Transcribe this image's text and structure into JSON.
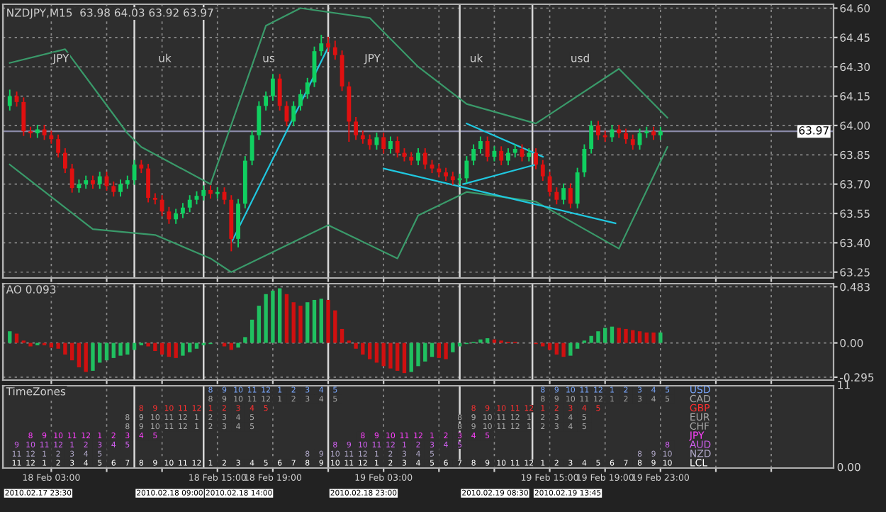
{
  "chart_data": [
    {
      "type": "candlestick",
      "title": "NZDJPY,M15  63.98 64.03 63.92 63.97",
      "xlim": [
        "2010-02-17T23:30",
        "2010-02-20T11:30"
      ],
      "xticks": [
        {
          "value": "2010-02-18T03:00",
          "label": null
        },
        {
          "value": "2010-02-18T07:00",
          "label": null
        },
        {
          "value": "2010-02-18T11:00",
          "label": null
        },
        {
          "value": "2010-02-18T15:00",
          "label": null
        },
        {
          "value": "2010-02-18T19:00",
          "label": null
        },
        {
          "value": "2010-02-18T23:00",
          "label": null
        },
        {
          "value": "2010-02-19T03:00",
          "label": null
        },
        {
          "value": "2010-02-19T07:00",
          "label": null
        },
        {
          "value": "2010-02-19T11:00",
          "label": null
        },
        {
          "value": "2010-02-19T15:00",
          "label": null
        },
        {
          "value": "2010-02-19T19:00",
          "label": null
        },
        {
          "value": "2010-02-19T23:00",
          "label": null
        },
        {
          "value": "2010-02-20T03:00",
          "label": null
        },
        {
          "value": "2010-02-20T07:00",
          "label": null
        }
      ],
      "ylim": [
        63.22,
        64.62
      ],
      "yticks": [
        {
          "value": 63.25,
          "label": "63.25"
        },
        {
          "value": 63.4,
          "label": "63.40"
        },
        {
          "value": 63.55,
          "label": "63.55"
        },
        {
          "value": 63.7,
          "label": "63.70"
        },
        {
          "value": 63.85,
          "label": "63.85"
        },
        {
          "value": 64.0,
          "label": "64.00"
        },
        {
          "value": 64.15,
          "label": "64.15"
        },
        {
          "value": 64.3,
          "label": "64.30"
        },
        {
          "value": 64.45,
          "label": "64.45"
        },
        {
          "value": 64.6,
          "label": "64.60"
        }
      ],
      "grid": true,
      "tick_labels": "y",
      "ref_lines": [
        {
          "axis": "y",
          "value": 63.97,
          "label": "63.97",
          "color": "#8a8aa8"
        },
        {
          "axis": "x",
          "value": "2010-02-17T23:30",
          "color": "#d8d8d8"
        },
        {
          "axis": "x",
          "value": "2010-02-18T09:00",
          "color": "#d8d8d8"
        },
        {
          "axis": "x",
          "value": "2010-02-18T14:00",
          "color": "#d8d8d8"
        },
        {
          "axis": "x",
          "value": "2010-02-18T23:00",
          "color": "#d8d8d8"
        },
        {
          "axis": "x",
          "value": "2010-02-19T08:30",
          "color": "#d8d8d8"
        },
        {
          "axis": "x",
          "value": "2010-02-19T13:45",
          "color": "#d8d8d8"
        }
      ],
      "annotations": [
        "JPY",
        "uk",
        "us",
        "JPY",
        "uk",
        "usd"
      ],
      "series": [
        {
          "type": "line",
          "color": "#3a9a6a",
          "x": [
            "2010-02-18T00:00",
            "2010-02-18T04:00",
            "2010-02-18T08:30",
            "2010-02-18T09:30",
            "2010-02-18T14:30",
            "2010-02-18T18:30",
            "2010-02-18T21:00",
            "2010-02-19T02:00",
            "2010-02-19T05:30",
            "2010-02-19T09:00",
            "2010-02-19T14:00",
            "2010-02-19T20:00",
            "2010-02-19T23:30"
          ],
          "values": [
            64.32,
            64.39,
            63.96,
            63.89,
            63.7,
            64.51,
            64.6,
            64.55,
            64.3,
            64.11,
            64.01,
            64.29,
            64.04
          ]
        },
        {
          "type": "line",
          "color": "#3a9a6a",
          "x": [
            "2010-02-18T00:00",
            "2010-02-18T06:00",
            "2010-02-18T10:30",
            "2010-02-18T14:30",
            "2010-02-18T16:00",
            "2010-02-18T23:00",
            "2010-02-19T04:00",
            "2010-02-19T05:30",
            "2010-02-19T09:00",
            "2010-02-19T14:00",
            "2010-02-19T20:00",
            "2010-02-19T23:30"
          ],
          "values": [
            63.8,
            63.47,
            63.44,
            63.32,
            63.25,
            63.49,
            63.32,
            63.54,
            63.66,
            63.61,
            63.37,
            63.89
          ]
        },
        {
          "type": "line",
          "color": "#20c8e0",
          "x": [
            "2010-02-18T16:00",
            "2010-02-18T23:00"
          ],
          "values": [
            63.4,
            64.4
          ]
        },
        {
          "type": "line",
          "color": "#20c8e0",
          "x": [
            "2010-02-19T03:00",
            "2010-02-19T19:45"
          ],
          "values": [
            63.78,
            63.5
          ]
        },
        {
          "type": "line",
          "color": "#20c8e0",
          "x": [
            "2010-02-19T09:00",
            "2010-02-19T14:30"
          ],
          "values": [
            64.01,
            63.84
          ]
        },
        {
          "type": "line",
          "color": "#20c8e0",
          "x": [
            "2010-02-19T08:45",
            "2010-02-19T14:00"
          ],
          "values": [
            63.7,
            63.8
          ]
        },
        {
          "color": "#10d060",
          "x": [
            "2010-02-18T00:00",
            "2010-02-18T02:00",
            "2010-02-18T05:00",
            "2010-02-18T05:30",
            "2010-02-18T06:30",
            "2010-02-18T08:00",
            "2010-02-18T08:30",
            "2010-02-18T09:00",
            "2010-02-18T12:00",
            "2010-02-18T12:30",
            "2010-02-18T13:00",
            "2010-02-18T13:30",
            "2010-02-18T14:00",
            "2010-02-18T15:00",
            "2010-02-18T16:30",
            "2010-02-18T17:00",
            "2010-02-18T17:30",
            "2010-02-18T18:00",
            "2010-02-18T18:30",
            "2010-02-18T19:00",
            "2010-02-18T20:30",
            "2010-02-18T21:00",
            "2010-02-18T21:30",
            "2010-02-18T22:00",
            "2010-02-18T22:30",
            "2010-02-19T02:30",
            "2010-02-19T03:30",
            "2010-02-19T05:30",
            "2010-02-19T08:30",
            "2010-02-19T09:00",
            "2010-02-19T09:30",
            "2010-02-19T10:00",
            "2010-02-19T11:00",
            "2010-02-19T12:00",
            "2010-02-19T12:30",
            "2010-02-19T13:30",
            "2010-02-19T16:00",
            "2010-02-19T17:00",
            "2010-02-19T17:30",
            "2010-02-19T18:00",
            "2010-02-19T19:30",
            "2010-02-19T21:30",
            "2010-02-19T22:00",
            "2010-02-19T23:00"
          ],
          "ohlc": [
            [
              64.1,
              64.18,
              64.08,
              64.15
            ],
            [
              63.96,
              64.0,
              63.94,
              63.98
            ],
            [
              63.68,
              63.72,
              63.66,
              63.7
            ],
            [
              63.7,
              63.74,
              63.68,
              63.72
            ],
            [
              63.7,
              63.76,
              63.68,
              63.74
            ],
            [
              63.66,
              63.72,
              63.64,
              63.7
            ],
            [
              63.7,
              63.74,
              63.68,
              63.72
            ],
            [
              63.72,
              63.82,
              63.7,
              63.8
            ],
            [
              63.52,
              63.57,
              63.5,
              63.55
            ],
            [
              63.55,
              63.6,
              63.53,
              63.58
            ],
            [
              63.58,
              63.64,
              63.56,
              63.62
            ],
            [
              63.62,
              63.66,
              63.6,
              63.64
            ],
            [
              63.64,
              63.69,
              63.62,
              63.67
            ],
            [
              63.65,
              63.68,
              63.63,
              63.66
            ],
            [
              63.42,
              63.62,
              63.38,
              63.6
            ],
            [
              63.6,
              63.84,
              63.58,
              63.82
            ],
            [
              63.82,
              63.97,
              63.8,
              63.95
            ],
            [
              63.95,
              64.12,
              63.93,
              64.1
            ],
            [
              64.1,
              64.17,
              64.08,
              64.15
            ],
            [
              64.15,
              64.26,
              64.13,
              64.24
            ],
            [
              64.02,
              64.12,
              64.0,
              64.1
            ],
            [
              64.1,
              64.18,
              64.08,
              64.16
            ],
            [
              64.16,
              64.24,
              64.14,
              64.22
            ],
            [
              64.22,
              64.4,
              64.2,
              64.38
            ],
            [
              64.38,
              64.46,
              64.36,
              64.42
            ],
            [
              63.9,
              63.96,
              63.88,
              63.94
            ],
            [
              63.88,
              63.94,
              63.86,
              63.92
            ],
            [
              63.82,
              63.88,
              63.8,
              63.86
            ],
            [
              63.72,
              63.75,
              63.7,
              63.73
            ],
            [
              63.73,
              63.84,
              63.71,
              63.82
            ],
            [
              63.82,
              63.9,
              63.8,
              63.88
            ],
            [
              63.88,
              63.94,
              63.86,
              63.92
            ],
            [
              63.84,
              63.89,
              63.82,
              63.87
            ],
            [
              63.82,
              63.88,
              63.8,
              63.86
            ],
            [
              63.86,
              63.9,
              63.84,
              63.88
            ],
            [
              63.84,
              63.88,
              63.82,
              63.86
            ],
            [
              63.62,
              63.7,
              63.6,
              63.68
            ],
            [
              63.6,
              63.78,
              63.58,
              63.76
            ],
            [
              63.76,
              63.9,
              63.74,
              63.88
            ],
            [
              63.88,
              64.02,
              63.86,
              64.0
            ],
            [
              63.94,
              64.0,
              63.92,
              63.98
            ],
            [
              63.9,
              63.98,
              63.88,
              63.96
            ],
            [
              63.96,
              63.99,
              63.94,
              63.97
            ],
            [
              63.95,
              63.99,
              63.93,
              63.97
            ]
          ]
        },
        {
          "color": "#e01010",
          "x": [
            "2010-02-18T00:30",
            "2010-02-18T01:00",
            "2010-02-18T01:30",
            "2010-02-18T02:30",
            "2010-02-18T03:00",
            "2010-02-18T03:30",
            "2010-02-18T04:00",
            "2010-02-18T04:30",
            "2010-02-18T06:00",
            "2010-02-18T07:00",
            "2010-02-18T07:30",
            "2010-02-18T09:30",
            "2010-02-18T10:00",
            "2010-02-18T10:30",
            "2010-02-18T11:00",
            "2010-02-18T11:30",
            "2010-02-18T14:30",
            "2010-02-18T15:30",
            "2010-02-18T16:00",
            "2010-02-18T19:30",
            "2010-02-18T20:00",
            "2010-02-18T23:00",
            "2010-02-18T23:30",
            "2010-02-19T00:00",
            "2010-02-19T00:30",
            "2010-02-19T01:00",
            "2010-02-19T01:30",
            "2010-02-19T02:00",
            "2010-02-19T03:00",
            "2010-02-19T04:00",
            "2010-02-19T04:30",
            "2010-02-19T05:00",
            "2010-02-19T06:00",
            "2010-02-19T06:30",
            "2010-02-19T07:00",
            "2010-02-19T07:30",
            "2010-02-19T08:00",
            "2010-02-19T10:30",
            "2010-02-19T11:30",
            "2010-02-19T13:00",
            "2010-02-19T14:00",
            "2010-02-19T14:30",
            "2010-02-19T15:00",
            "2010-02-19T15:30",
            "2010-02-19T16:30",
            "2010-02-19T18:30",
            "2010-02-19T19:00",
            "2010-02-19T20:00",
            "2010-02-19T20:30",
            "2010-02-19T21:00",
            "2010-02-19T22:30"
          ],
          "ohlc": [
            [
              64.15,
              64.17,
              64.1,
              64.12
            ],
            [
              64.12,
              64.14,
              63.95,
              63.97
            ],
            [
              63.97,
              63.99,
              63.94,
              63.96
            ],
            [
              63.98,
              64.0,
              63.93,
              63.95
            ],
            [
              63.95,
              63.97,
              63.91,
              63.93
            ],
            [
              63.93,
              63.95,
              63.84,
              63.86
            ],
            [
              63.86,
              63.88,
              63.76,
              63.78
            ],
            [
              63.78,
              63.8,
              63.66,
              63.68
            ],
            [
              63.72,
              63.74,
              63.68,
              63.7
            ],
            [
              63.74,
              63.76,
              63.67,
              63.69
            ],
            [
              63.69,
              63.71,
              63.64,
              63.66
            ],
            [
              63.8,
              63.82,
              63.76,
              63.78
            ],
            [
              63.78,
              63.8,
              63.61,
              63.63
            ],
            [
              63.63,
              63.65,
              63.6,
              63.62
            ],
            [
              63.62,
              63.64,
              63.54,
              63.56
            ],
            [
              63.56,
              63.58,
              63.5,
              63.52
            ],
            [
              63.67,
              63.69,
              63.63,
              63.65
            ],
            [
              63.66,
              63.68,
              63.6,
              63.62
            ],
            [
              63.62,
              63.64,
              63.36,
              63.42
            ],
            [
              64.24,
              64.26,
              64.08,
              64.1
            ],
            [
              64.1,
              64.12,
              64.0,
              64.02
            ],
            [
              64.42,
              64.45,
              64.38,
              64.4
            ],
            [
              64.4,
              64.43,
              64.34,
              64.36
            ],
            [
              64.36,
              64.38,
              64.18,
              64.2
            ],
            [
              64.2,
              64.22,
              63.92,
              64.02
            ],
            [
              64.02,
              64.04,
              63.93,
              63.95
            ],
            [
              63.95,
              63.97,
              63.91,
              63.93
            ],
            [
              63.93,
              63.95,
              63.88,
              63.9
            ],
            [
              63.94,
              63.96,
              63.86,
              63.88
            ],
            [
              63.92,
              63.94,
              63.84,
              63.86
            ],
            [
              63.86,
              63.88,
              63.82,
              63.84
            ],
            [
              63.84,
              63.86,
              63.8,
              63.82
            ],
            [
              63.86,
              63.88,
              63.78,
              63.8
            ],
            [
              63.8,
              63.82,
              63.76,
              63.78
            ],
            [
              63.78,
              63.8,
              63.74,
              63.76
            ],
            [
              63.76,
              63.78,
              63.72,
              63.74
            ],
            [
              63.74,
              63.76,
              63.7,
              63.72
            ],
            [
              63.92,
              63.94,
              63.82,
              63.84
            ],
            [
              63.87,
              63.89,
              63.8,
              63.82
            ],
            [
              63.88,
              63.9,
              63.82,
              63.84
            ],
            [
              63.86,
              63.88,
              63.78,
              63.8
            ],
            [
              63.8,
              63.82,
              63.72,
              63.74
            ],
            [
              63.74,
              63.76,
              63.64,
              63.66
            ],
            [
              63.66,
              63.68,
              63.6,
              63.62
            ],
            [
              63.68,
              63.7,
              63.58,
              63.6
            ],
            [
              64.0,
              64.02,
              63.93,
              63.95
            ],
            [
              63.95,
              63.97,
              63.92,
              63.94
            ],
            [
              63.98,
              64.0,
              63.94,
              63.96
            ],
            [
              63.96,
              63.98,
              63.91,
              63.93
            ],
            [
              63.93,
              63.95,
              63.88,
              63.9
            ],
            [
              63.97,
              63.99,
              63.93,
              63.95
            ]
          ]
        }
      ]
    },
    {
      "type": "bar",
      "title": "AO 0.093",
      "xlim": [
        "2010-02-17T23:30",
        "2010-02-20T11:30"
      ],
      "xticks": [
        {
          "value": "2010-02-18T03:00",
          "label": null
        },
        {
          "value": "2010-02-18T07:00",
          "label": null
        },
        {
          "value": "2010-02-18T11:00",
          "label": null
        },
        {
          "value": "2010-02-18T15:00",
          "label": null
        },
        {
          "value": "2010-02-18T19:00",
          "label": null
        },
        {
          "value": "2010-02-18T23:00",
          "label": null
        },
        {
          "value": "2010-02-19T03:00",
          "label": null
        },
        {
          "value": "2010-02-19T07:00",
          "label": null
        },
        {
          "value": "2010-02-19T11:00",
          "label": null
        },
        {
          "value": "2010-02-19T15:00",
          "label": null
        },
        {
          "value": "2010-02-19T19:00",
          "label": null
        },
        {
          "value": "2010-02-19T23:00",
          "label": null
        },
        {
          "value": "2010-02-20T03:00",
          "label": null
        },
        {
          "value": "2010-02-20T07:00",
          "label": null
        }
      ],
      "ylim": [
        -0.32,
        0.51
      ],
      "yticks": [
        {
          "value": -0.295,
          "label": "-0.295"
        },
        {
          "value": 0,
          "label": "0.00"
        },
        0.483
      ],
      "grid": true,
      "tick_labels": "y",
      "ref_lines": [
        {
          "axis": "x",
          "value": "2010-02-17T23:30",
          "color": "#d8d8d8"
        },
        {
          "axis": "x",
          "value": "2010-02-18T09:00",
          "color": "#d8d8d8"
        },
        {
          "axis": "x",
          "value": "2010-02-18T14:00",
          "color": "#d8d8d8"
        },
        {
          "axis": "x",
          "value": "2010-02-18T23:00",
          "color": "#d8d8d8"
        },
        {
          "axis": "x",
          "value": "2010-02-19T08:30",
          "color": "#d8d8d8"
        },
        {
          "axis": "x",
          "value": "2010-02-19T13:45",
          "color": "#d8d8d8"
        }
      ],
      "x": [
        "2010-02-18T00:00",
        "2010-02-18T00:30",
        "2010-02-18T01:00",
        "2010-02-18T01:30",
        "2010-02-18T02:00",
        "2010-02-18T02:30",
        "2010-02-18T03:00",
        "2010-02-18T03:30",
        "2010-02-18T04:00",
        "2010-02-18T04:30",
        "2010-02-18T05:00",
        "2010-02-18T05:30",
        "2010-02-18T06:00",
        "2010-02-18T06:30",
        "2010-02-18T07:00",
        "2010-02-18T07:30",
        "2010-02-18T08:00",
        "2010-02-18T08:30",
        "2010-02-18T09:00",
        "2010-02-18T09:30",
        "2010-02-18T10:00",
        "2010-02-18T10:30",
        "2010-02-18T11:00",
        "2010-02-18T11:30",
        "2010-02-18T12:00",
        "2010-02-18T12:30",
        "2010-02-18T13:00",
        "2010-02-18T13:30",
        "2010-02-18T14:00",
        "2010-02-18T14:30",
        "2010-02-18T15:00",
        "2010-02-18T15:30",
        "2010-02-18T16:00",
        "2010-02-18T16:30",
        "2010-02-18T17:00",
        "2010-02-18T17:30",
        "2010-02-18T18:00",
        "2010-02-18T18:30",
        "2010-02-18T19:00",
        "2010-02-18T19:30",
        "2010-02-18T20:00",
        "2010-02-18T20:30",
        "2010-02-18T21:00",
        "2010-02-18T21:30",
        "2010-02-18T22:00",
        "2010-02-18T22:30",
        "2010-02-18T23:00",
        "2010-02-18T23:30",
        "2010-02-19T00:00",
        "2010-02-19T00:30",
        "2010-02-19T01:00",
        "2010-02-19T01:30",
        "2010-02-19T02:00",
        "2010-02-19T02:30",
        "2010-02-19T03:00",
        "2010-02-19T03:30",
        "2010-02-19T04:00",
        "2010-02-19T04:30",
        "2010-02-19T05:00",
        "2010-02-19T05:30",
        "2010-02-19T06:00",
        "2010-02-19T06:30",
        "2010-02-19T07:00",
        "2010-02-19T07:30",
        "2010-02-19T08:00",
        "2010-02-19T08:30",
        "2010-02-19T09:00",
        "2010-02-19T09:30",
        "2010-02-19T10:00",
        "2010-02-19T10:30",
        "2010-02-19T11:00",
        "2010-02-19T11:30",
        "2010-02-19T12:00",
        "2010-02-19T12:30",
        "2010-02-19T13:00",
        "2010-02-19T13:30",
        "2010-02-19T14:00",
        "2010-02-19T14:30",
        "2010-02-19T15:00",
        "2010-02-19T15:30",
        "2010-02-19T16:00",
        "2010-02-19T16:30",
        "2010-02-19T17:00",
        "2010-02-19T17:30",
        "2010-02-19T18:00",
        "2010-02-19T18:30",
        "2010-02-19T19:00",
        "2010-02-19T19:30",
        "2010-02-19T20:00",
        "2010-02-19T20:30",
        "2010-02-19T21:00",
        "2010-02-19T21:30",
        "2010-02-19T22:00",
        "2010-02-19T22:30",
        "2010-02-19T23:00"
      ],
      "values": [
        0.1,
        0.08,
        0.02,
        -0.03,
        -0.02,
        -0.02,
        -0.04,
        -0.05,
        -0.1,
        -0.15,
        -0.21,
        -0.25,
        -0.24,
        -0.17,
        -0.15,
        -0.13,
        -0.11,
        -0.1,
        -0.06,
        -0.02,
        -0.03,
        -0.07,
        -0.1,
        -0.12,
        -0.13,
        -0.11,
        -0.08,
        -0.05,
        -0.02,
        -0.01,
        0.0,
        -0.03,
        -0.06,
        -0.04,
        0.05,
        0.2,
        0.32,
        0.42,
        0.45,
        0.47,
        0.42,
        0.35,
        0.32,
        0.35,
        0.37,
        0.38,
        0.37,
        0.28,
        0.12,
        0.02,
        -0.05,
        -0.1,
        -0.14,
        -0.17,
        -0.2,
        -0.22,
        -0.24,
        -0.26,
        -0.25,
        -0.2,
        -0.16,
        -0.12,
        -0.13,
        -0.14,
        -0.08,
        -0.03,
        -0.01,
        0.01,
        0.03,
        0.04,
        0.03,
        0.02,
        0.01,
        0.01,
        0.0,
        0.0,
        -0.01,
        -0.03,
        -0.06,
        -0.1,
        -0.12,
        -0.11,
        -0.05,
        0.02,
        0.06,
        0.1,
        0.13,
        0.14,
        0.13,
        0.12,
        0.11,
        0.1,
        0.09,
        0.09,
        0.09
      ],
      "colors": [
        "#20c060",
        "#d01010",
        "#d01010",
        "#d01010",
        "#20c060",
        "#d01010",
        "#d01010",
        "#d01010",
        "#d01010",
        "#d01010",
        "#d01010",
        "#d01010",
        "#20c060",
        "#20c060",
        "#20c060",
        "#20c060",
        "#20c060",
        "#20c060",
        "#20c060",
        "#20c060",
        "#d01010",
        "#d01010",
        "#d01010",
        "#d01010",
        "#d01010",
        "#20c060",
        "#20c060",
        "#20c060",
        "#20c060",
        "#20c060",
        "#20c060",
        "#d01010",
        "#d01010",
        "#20c060",
        "#20c060",
        "#20c060",
        "#20c060",
        "#20c060",
        "#20c060",
        "#20c060",
        "#d01010",
        "#d01010",
        "#d01010",
        "#20c060",
        "#20c060",
        "#20c060",
        "#d01010",
        "#d01010",
        "#d01010",
        "#d01010",
        "#d01010",
        "#d01010",
        "#d01010",
        "#d01010",
        "#d01010",
        "#d01010",
        "#d01010",
        "#d01010",
        "#20c060",
        "#20c060",
        "#20c060",
        "#20c060",
        "#d01010",
        "#d01010",
        "#20c060",
        "#20c060",
        "#20c060",
        "#20c060",
        "#20c060",
        "#20c060",
        "#d01010",
        "#d01010",
        "#d01010",
        "#d01010",
        "#d01010",
        "#d01010",
        "#d01010",
        "#d01010",
        "#d01010",
        "#d01010",
        "#d01010",
        "#20c060",
        "#20c060",
        "#20c060",
        "#20c060",
        "#20c060",
        "#20c060",
        "#20c060",
        "#d01010",
        "#d01010",
        "#d01010",
        "#d01010",
        "#d01010",
        "#d01010",
        "#20c060"
      ]
    },
    {
      "type": "heatmap",
      "title": "TimeZones",
      "data_labels": true,
      "y_categories": [
        null,
        null,
        null,
        null,
        null,
        null,
        null,
        null,
        null
      ],
      "y2_categories": [
        "USD",
        "CAD",
        "GBP",
        "EUR",
        "CHF",
        "JPY",
        "AUD",
        "NZD",
        "LCL"
      ],
      "colors": [
        "#7aa8ff",
        "#a8a8a8",
        "#ff3030",
        "#a8a8a8",
        "#a8a8a8",
        "#ff40ff",
        "#d060f0",
        "#b0a8c8",
        "#ffffff"
      ],
      "cells": [
        [
          null,
          null,
          null,
          null,
          null,
          null,
          null,
          null,
          null,
          null,
          null,
          null,
          null,
          null,
          8,
          9,
          10,
          11,
          12,
          1,
          2,
          3,
          4,
          5,
          null,
          null,
          null,
          null,
          null,
          null,
          null,
          null,
          null,
          null,
          null,
          null,
          null,
          null,
          8,
          9,
          10,
          11,
          12,
          1,
          2,
          3,
          4,
          5
        ],
        [
          null,
          null,
          null,
          null,
          null,
          null,
          null,
          null,
          null,
          null,
          null,
          null,
          null,
          null,
          8,
          9,
          10,
          11,
          12,
          1,
          2,
          3,
          4,
          5,
          null,
          null,
          null,
          null,
          null,
          null,
          null,
          null,
          null,
          null,
          null,
          null,
          null,
          null,
          8,
          9,
          10,
          11,
          12,
          1,
          2,
          3,
          4,
          5
        ],
        [
          null,
          null,
          null,
          null,
          null,
          null,
          null,
          null,
          null,
          8,
          9,
          10,
          11,
          12,
          1,
          2,
          3,
          4,
          5,
          null,
          null,
          null,
          null,
          null,
          null,
          null,
          null,
          null,
          null,
          null,
          null,
          null,
          null,
          8,
          9,
          10,
          11,
          12,
          1,
          2,
          3,
          4,
          5,
          null,
          null,
          null,
          null,
          null
        ],
        [
          null,
          null,
          null,
          null,
          null,
          null,
          null,
          null,
          8,
          9,
          10,
          11,
          12,
          1,
          2,
          3,
          4,
          5,
          null,
          null,
          null,
          null,
          null,
          null,
          null,
          null,
          null,
          null,
          null,
          null,
          null,
          null,
          8,
          9,
          10,
          11,
          12,
          1,
          2,
          3,
          4,
          5,
          null,
          null,
          null,
          null,
          null,
          null
        ],
        [
          null,
          null,
          null,
          null,
          null,
          null,
          null,
          null,
          8,
          9,
          10,
          11,
          12,
          1,
          2,
          3,
          4,
          5,
          null,
          null,
          null,
          null,
          null,
          null,
          null,
          null,
          null,
          null,
          null,
          null,
          null,
          null,
          8,
          9,
          10,
          11,
          12,
          1,
          2,
          3,
          4,
          5,
          null,
          null,
          null,
          null,
          null,
          null
        ],
        [
          null,
          8,
          9,
          10,
          11,
          12,
          1,
          2,
          3,
          4,
          5,
          null,
          null,
          null,
          null,
          null,
          null,
          null,
          null,
          null,
          null,
          null,
          null,
          null,
          null,
          8,
          9,
          10,
          11,
          12,
          1,
          2,
          3,
          4,
          5,
          null,
          null,
          null,
          null,
          null,
          null,
          null,
          null,
          null,
          null,
          null,
          null,
          null
        ],
        [
          9,
          10,
          11,
          12,
          1,
          2,
          3,
          4,
          5,
          null,
          null,
          null,
          null,
          null,
          null,
          null,
          null,
          null,
          null,
          null,
          null,
          null,
          null,
          8,
          9,
          10,
          11,
          12,
          1,
          2,
          3,
          4,
          5,
          null,
          null,
          null,
          null,
          null,
          null,
          null,
          null,
          null,
          null,
          null,
          null,
          null,
          null,
          8
        ],
        [
          11,
          12,
          1,
          2,
          3,
          4,
          5,
          null,
          null,
          null,
          null,
          null,
          null,
          null,
          null,
          null,
          null,
          null,
          null,
          null,
          null,
          8,
          9,
          10,
          11,
          12,
          1,
          2,
          3,
          4,
          5,
          null,
          null,
          null,
          null,
          null,
          null,
          null,
          null,
          null,
          null,
          null,
          null,
          null,
          null,
          8,
          9,
          10
        ],
        [
          11,
          12,
          1,
          2,
          3,
          4,
          5,
          6,
          7,
          8,
          9,
          10,
          11,
          12,
          1,
          2,
          3,
          4,
          5,
          6,
          7,
          8,
          9,
          10,
          11,
          12,
          1,
          2,
          3,
          4,
          5,
          6,
          7,
          8,
          9,
          10,
          11,
          12,
          1,
          2,
          3,
          4,
          5,
          6,
          7,
          8,
          9,
          10
        ]
      ],
      "xlim": [
        "2010-02-17T23:30",
        "2010-02-20T11:30"
      ],
      "xticks": [
        {
          "value": "2010-02-18T03:00",
          "label": "18 Feb 03:00"
        },
        {
          "value": "2010-02-18T07:00",
          "label": null
        },
        {
          "value": "2010-02-18T11:00",
          "label": null
        },
        {
          "value": "2010-02-18T15:00",
          "label": "18 Feb 15:00"
        },
        {
          "value": "2010-02-18T19:00",
          "label": "18 Feb 19:00"
        },
        {
          "value": "2010-02-18T23:00",
          "label": null
        },
        {
          "value": "2010-02-19T03:00",
          "label": "19 Feb 03:00"
        },
        {
          "value": "2010-02-19T07:00",
          "label": null
        },
        {
          "value": "2010-02-19T11:00",
          "label": null
        },
        {
          "value": "2010-02-19T15:00",
          "label": "19 Feb 15:00"
        },
        {
          "value": "2010-02-19T19:00",
          "label": "19 Feb 19:00"
        },
        {
          "value": "2010-02-19T23:00",
          "label": "19 Feb 23:00"
        },
        {
          "value": "2010-02-20T03:00",
          "label": null
        },
        {
          "value": "2010-02-20T07:00",
          "label": null
        }
      ],
      "annotations": [
        "11",
        "0.00"
      ],
      "grid": "x",
      "ref_lines": [
        {
          "axis": "x",
          "value": "2010-02-17T23:30",
          "label": "2010.02.17 23:30",
          "color": "#d8d8d8"
        },
        {
          "axis": "x",
          "value": "2010-02-18T09:00",
          "label": "2010.02.18 09:00",
          "color": "#d8d8d8"
        },
        {
          "axis": "x",
          "value": "2010-02-18T14:00",
          "label": "2010.02.18 14:00",
          "color": "#d8d8d8"
        },
        {
          "axis": "x",
          "value": "2010-02-18T23:00",
          "label": "2010.02.18 23:00",
          "color": "#d8d8d8"
        },
        {
          "axis": "x",
          "value": "2010-02-19T08:30",
          "label": "2010.02.19 08:30",
          "color": "#d8d8d8"
        },
        {
          "axis": "x",
          "value": "2010-02-19T13:45",
          "label": "2010.02.19 13:45",
          "color": "#d8d8d8"
        }
      ],
      "x": [
        "2010-02-18T00:30",
        "2010-02-18T01:30",
        "2010-02-18T02:30",
        "2010-02-18T03:30",
        "2010-02-18T04:30",
        "2010-02-18T05:30",
        "2010-02-18T06:30",
        "2010-02-18T07:30",
        "2010-02-18T08:30",
        "2010-02-18T09:30",
        "2010-02-18T10:30",
        "2010-02-18T11:30",
        "2010-02-18T12:30",
        "2010-02-18T13:30",
        "2010-02-18T14:30",
        "2010-02-18T15:30",
        "2010-02-18T16:30",
        "2010-02-18T17:30",
        "2010-02-18T18:30",
        "2010-02-18T19:30",
        "2010-02-18T20:30",
        "2010-02-18T21:30",
        "2010-02-18T22:30",
        "2010-02-18T23:30",
        "2010-02-19T00:30",
        "2010-02-19T01:30",
        "2010-02-19T02:30",
        "2010-02-19T03:30",
        "2010-02-19T04:30",
        "2010-02-19T05:30",
        "2010-02-19T06:30",
        "2010-02-19T07:30",
        "2010-02-19T08:30",
        "2010-02-19T09:30",
        "2010-02-19T10:30",
        "2010-02-19T11:30",
        "2010-02-19T12:30",
        "2010-02-19T13:30",
        "2010-02-19T14:30",
        "2010-02-19T15:30",
        "2010-02-19T16:30",
        "2010-02-19T17:30",
        "2010-02-19T18:30",
        "2010-02-19T19:30",
        "2010-02-19T20:30",
        "2010-02-19T21:30",
        "2010-02-19T22:30",
        "2010-02-19T23:30"
      ]
    }
  ]
}
